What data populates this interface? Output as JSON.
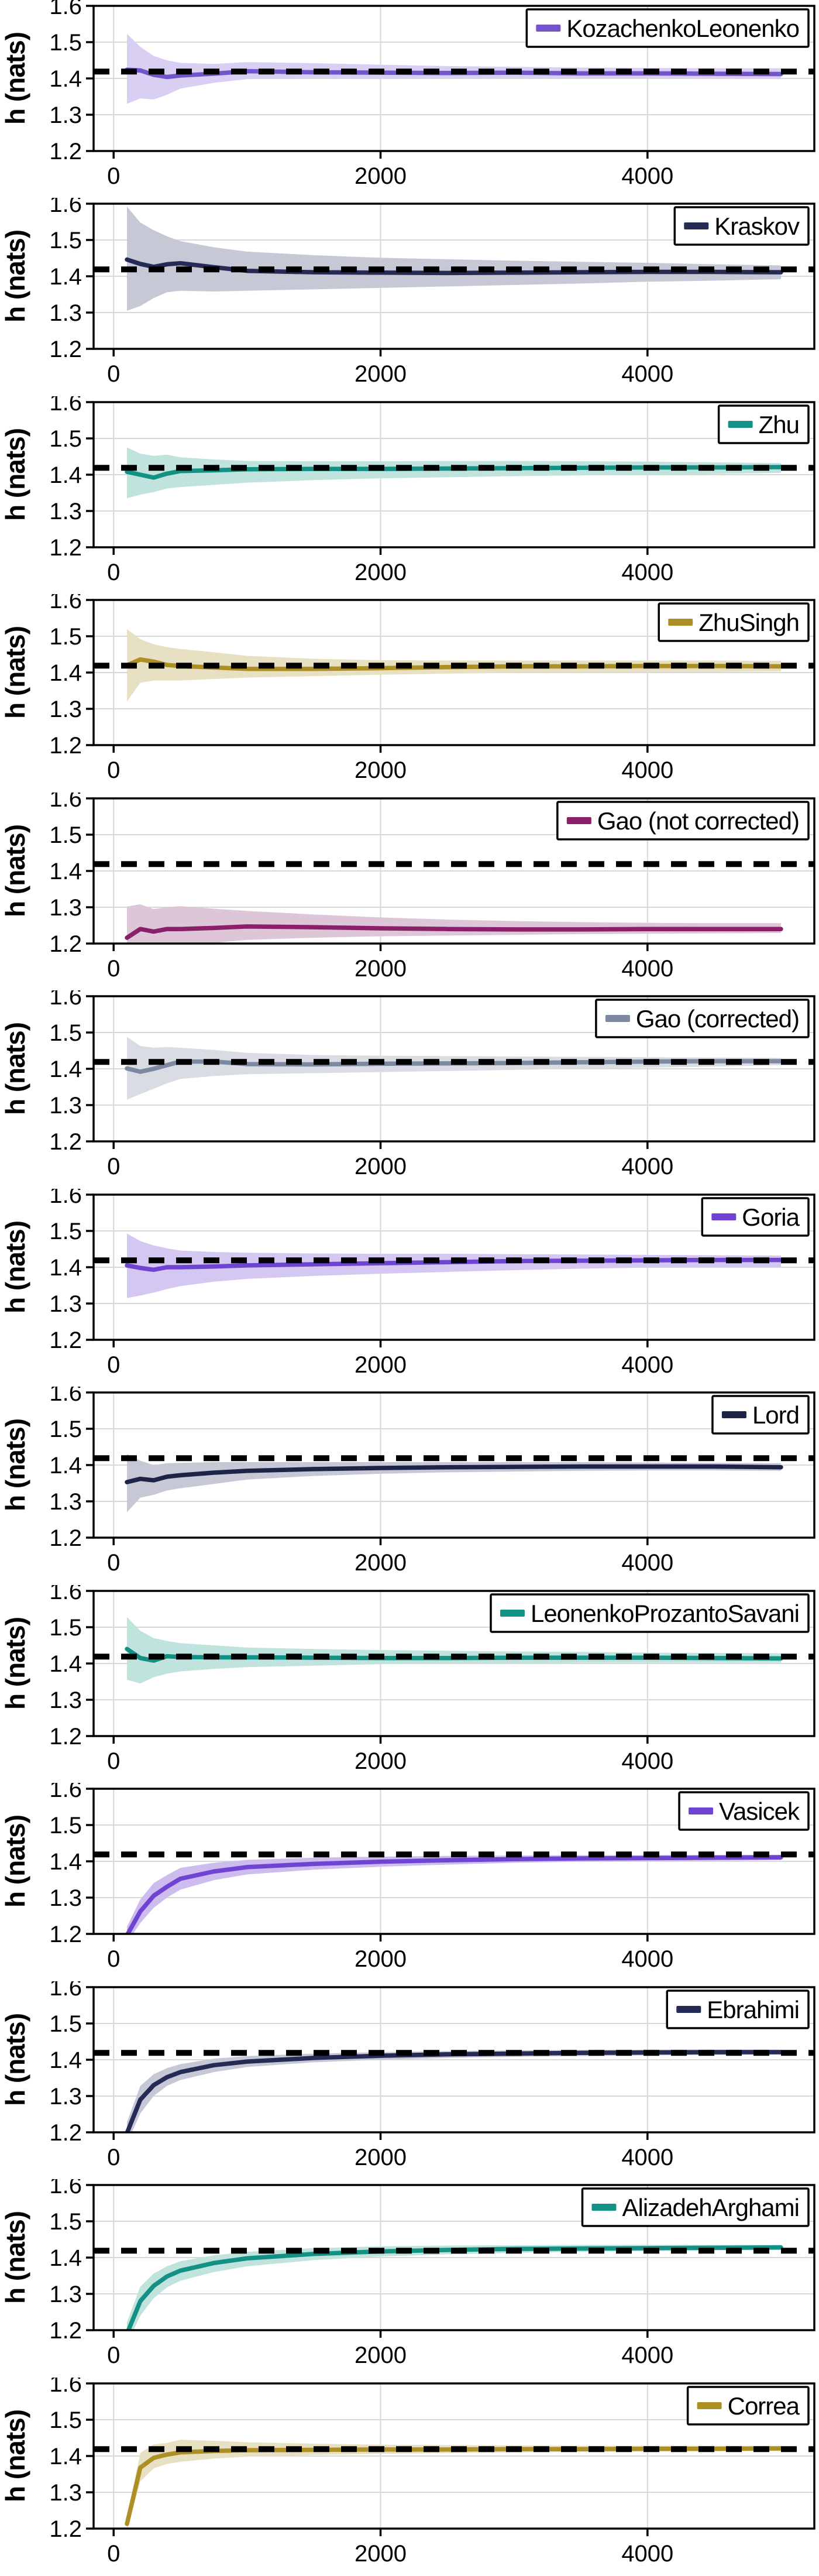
{
  "figure": {
    "ylabel": "h (nats)",
    "yticks": [
      "1.2",
      "1.3",
      "1.4",
      "1.5",
      "1.6"
    ],
    "ytick_values": [
      1.2,
      1.3,
      1.4,
      1.5,
      1.6
    ],
    "xticks": [
      "0",
      "2000",
      "4000"
    ],
    "xtick_values": [
      0,
      2000,
      4000
    ],
    "ylim": [
      1.2,
      1.6
    ],
    "xlim": [
      -150,
      5250
    ],
    "grid": true,
    "grid_color": "#D8D8D8",
    "frame_color": "#000000",
    "reference_value": 1.4189,
    "reference_color": "#000000",
    "reference_style": "dashed",
    "legend_position": "top-right"
  },
  "chart_data": [
    {
      "type": "line",
      "name": "KozachenkoLeonenko",
      "legend": "KozachenkoLeonenko",
      "line_color": "#7355CB",
      "band_color": "#D9CFF2",
      "x": [
        100,
        200,
        300,
        400,
        500,
        750,
        1000,
        1500,
        2000,
        2500,
        3000,
        3500,
        4000,
        4500,
        5000
      ],
      "mean": [
        1.424,
        1.422,
        1.41,
        1.404,
        1.408,
        1.413,
        1.42,
        1.417,
        1.416,
        1.415,
        1.416,
        1.414,
        1.414,
        1.413,
        1.412
      ],
      "lo": [
        1.33,
        1.345,
        1.342,
        1.355,
        1.372,
        1.388,
        1.398,
        1.4,
        1.399,
        1.4,
        1.401,
        1.4,
        1.4,
        1.399,
        1.398
      ],
      "hi": [
        1.523,
        1.487,
        1.462,
        1.45,
        1.443,
        1.44,
        1.445,
        1.442,
        1.438,
        1.434,
        1.432,
        1.43,
        1.429,
        1.428,
        1.428
      ]
    },
    {
      "type": "line",
      "name": "Kraskov",
      "legend": "Kraskov",
      "line_color": "#252B54",
      "band_color": "#C6C8D6",
      "x": [
        100,
        200,
        300,
        400,
        500,
        750,
        1000,
        1500,
        2000,
        2500,
        3000,
        3500,
        4000,
        4500,
        5000
      ],
      "mean": [
        1.446,
        1.434,
        1.426,
        1.433,
        1.436,
        1.425,
        1.415,
        1.411,
        1.41,
        1.409,
        1.41,
        1.411,
        1.412,
        1.412,
        1.411
      ],
      "lo": [
        1.305,
        1.318,
        1.34,
        1.356,
        1.36,
        1.358,
        1.36,
        1.364,
        1.368,
        1.372,
        1.376,
        1.38,
        1.385,
        1.388,
        1.392
      ],
      "hi": [
        1.592,
        1.548,
        1.527,
        1.51,
        1.497,
        1.48,
        1.468,
        1.458,
        1.451,
        1.447,
        1.443,
        1.44,
        1.437,
        1.433,
        1.43
      ]
    },
    {
      "type": "line",
      "name": "Zhu",
      "legend": "Zhu",
      "line_color": "#149185",
      "band_color": "#C0E3DE",
      "x": [
        100,
        200,
        300,
        400,
        500,
        750,
        1000,
        1500,
        2000,
        2500,
        3000,
        3500,
        4000,
        4500,
        5000
      ],
      "mean": [
        1.408,
        1.4,
        1.392,
        1.403,
        1.41,
        1.412,
        1.415,
        1.416,
        1.416,
        1.417,
        1.418,
        1.419,
        1.42,
        1.42,
        1.421
      ],
      "lo": [
        1.335,
        1.345,
        1.352,
        1.362,
        1.366,
        1.372,
        1.378,
        1.385,
        1.39,
        1.393,
        1.396,
        1.398,
        1.4,
        1.402,
        1.405
      ],
      "hi": [
        1.475,
        1.458,
        1.452,
        1.455,
        1.448,
        1.442,
        1.438,
        1.437,
        1.437,
        1.438,
        1.438,
        1.437,
        1.436,
        1.434,
        1.432
      ]
    },
    {
      "type": "line",
      "name": "ZhuSingh",
      "legend": "ZhuSingh",
      "line_color": "#AD9025",
      "band_color": "#E7E0C2",
      "x": [
        100,
        200,
        300,
        400,
        500,
        750,
        1000,
        1500,
        2000,
        2500,
        3000,
        3500,
        4000,
        4500,
        5000
      ],
      "mean": [
        1.42,
        1.436,
        1.43,
        1.421,
        1.418,
        1.414,
        1.41,
        1.41,
        1.412,
        1.415,
        1.417,
        1.417,
        1.418,
        1.418,
        1.417
      ],
      "lo": [
        1.32,
        1.372,
        1.378,
        1.378,
        1.378,
        1.382,
        1.386,
        1.39,
        1.394,
        1.397,
        1.399,
        1.4,
        1.401,
        1.402,
        1.403
      ],
      "hi": [
        1.52,
        1.492,
        1.478,
        1.47,
        1.465,
        1.456,
        1.446,
        1.438,
        1.434,
        1.433,
        1.433,
        1.433,
        1.433,
        1.433,
        1.432
      ]
    },
    {
      "type": "line",
      "name": "Gao (not corrected)",
      "legend": "Gao (not corrected)",
      "line_color": "#8A2069",
      "band_color": "#DCC6D7",
      "x": [
        100,
        200,
        300,
        400,
        500,
        750,
        1000,
        1500,
        2000,
        2500,
        3000,
        3500,
        4000,
        4500,
        5000
      ],
      "mean": [
        1.216,
        1.24,
        1.233,
        1.24,
        1.24,
        1.243,
        1.247,
        1.245,
        1.242,
        1.24,
        1.239,
        1.239,
        1.24,
        1.24,
        1.24
      ],
      "lo": [
        1.198,
        1.2,
        1.198,
        1.2,
        1.2,
        1.202,
        1.21,
        1.216,
        1.22,
        1.222,
        1.224,
        1.226,
        1.227,
        1.228,
        1.229
      ],
      "hi": [
        1.302,
        1.308,
        1.295,
        1.3,
        1.303,
        1.296,
        1.29,
        1.28,
        1.272,
        1.266,
        1.262,
        1.259,
        1.257,
        1.256,
        1.256
      ]
    },
    {
      "type": "line",
      "name": "Gao (corrected)",
      "legend": "Gao (corrected)",
      "line_color": "#7D89A0",
      "band_color": "#DADCE3",
      "x": [
        100,
        200,
        300,
        400,
        500,
        750,
        1000,
        1500,
        2000,
        2500,
        3000,
        3500,
        4000,
        4500,
        5000
      ],
      "mean": [
        1.401,
        1.392,
        1.4,
        1.41,
        1.42,
        1.42,
        1.413,
        1.412,
        1.414,
        1.415,
        1.416,
        1.418,
        1.42,
        1.421,
        1.421
      ],
      "lo": [
        1.315,
        1.33,
        1.345,
        1.36,
        1.372,
        1.38,
        1.385,
        1.388,
        1.391,
        1.394,
        1.397,
        1.4,
        1.403,
        1.406,
        1.41
      ],
      "hi": [
        1.488,
        1.463,
        1.458,
        1.46,
        1.458,
        1.452,
        1.444,
        1.438,
        1.436,
        1.435,
        1.434,
        1.433,
        1.432,
        1.431,
        1.43
      ]
    },
    {
      "type": "line",
      "name": "Goria",
      "legend": "Goria",
      "line_color": "#6F44D2",
      "band_color": "#D4C7F1",
      "x": [
        100,
        200,
        300,
        400,
        500,
        750,
        1000,
        1500,
        2000,
        2500,
        3000,
        3500,
        4000,
        4500,
        5000
      ],
      "mean": [
        1.405,
        1.398,
        1.393,
        1.4,
        1.4,
        1.402,
        1.405,
        1.408,
        1.411,
        1.414,
        1.417,
        1.418,
        1.419,
        1.42,
        1.42
      ],
      "lo": [
        1.315,
        1.322,
        1.33,
        1.34,
        1.348,
        1.36,
        1.368,
        1.376,
        1.382,
        1.387,
        1.392,
        1.396,
        1.399,
        1.4,
        1.4
      ],
      "hi": [
        1.493,
        1.472,
        1.46,
        1.452,
        1.446,
        1.442,
        1.44,
        1.438,
        1.437,
        1.437,
        1.436,
        1.435,
        1.434,
        1.433,
        1.432
      ]
    },
    {
      "type": "line",
      "name": "Lord",
      "legend": "Lord",
      "line_color": "#1E2348",
      "band_color": "#C6C8D6",
      "x": [
        100,
        200,
        300,
        400,
        500,
        750,
        1000,
        1500,
        2000,
        2500,
        3000,
        3500,
        4000,
        4500,
        5000
      ],
      "mean": [
        1.353,
        1.362,
        1.358,
        1.368,
        1.372,
        1.379,
        1.384,
        1.389,
        1.392,
        1.394,
        1.395,
        1.396,
        1.396,
        1.396,
        1.394
      ],
      "lo": [
        1.27,
        1.31,
        1.318,
        1.33,
        1.336,
        1.348,
        1.36,
        1.37,
        1.376,
        1.38,
        1.382,
        1.384,
        1.385,
        1.385,
        1.384
      ],
      "hi": [
        1.43,
        1.412,
        1.4,
        1.405,
        1.406,
        1.408,
        1.408,
        1.408,
        1.408,
        1.408,
        1.408,
        1.408,
        1.407,
        1.406,
        1.405
      ]
    },
    {
      "type": "line",
      "name": "LeonenkoProzantoSavani",
      "legend": "LeonenkoProzantoSavani",
      "line_color": "#149185",
      "band_color": "#C0E3DE",
      "x": [
        100,
        200,
        300,
        400,
        500,
        750,
        1000,
        1500,
        2000,
        2500,
        3000,
        3500,
        4000,
        4500,
        5000
      ],
      "mean": [
        1.44,
        1.415,
        1.408,
        1.42,
        1.418,
        1.417,
        1.417,
        1.416,
        1.415,
        1.415,
        1.416,
        1.416,
        1.416,
        1.415,
        1.414
      ],
      "lo": [
        1.355,
        1.345,
        1.362,
        1.372,
        1.378,
        1.385,
        1.39,
        1.394,
        1.398,
        1.4,
        1.401,
        1.402,
        1.402,
        1.402,
        1.402
      ],
      "hi": [
        1.528,
        1.49,
        1.47,
        1.462,
        1.456,
        1.45,
        1.444,
        1.44,
        1.437,
        1.435,
        1.433,
        1.432,
        1.43,
        1.429,
        1.428
      ]
    },
    {
      "type": "line",
      "name": "Vasicek",
      "legend": "Vasicek",
      "line_color": "#6F44D2",
      "band_color": "#CDBCEE",
      "x": [
        100,
        200,
        300,
        400,
        500,
        750,
        1000,
        1500,
        2000,
        2500,
        3000,
        3500,
        4000,
        4500,
        5000
      ],
      "mean": [
        1.196,
        1.262,
        1.305,
        1.33,
        1.352,
        1.372,
        1.384,
        1.393,
        1.399,
        1.403,
        1.406,
        1.408,
        1.409,
        1.41,
        1.411
      ],
      "lo": [
        1.175,
        1.23,
        1.272,
        1.3,
        1.322,
        1.348,
        1.364,
        1.377,
        1.385,
        1.391,
        1.396,
        1.399,
        1.401,
        1.402,
        1.403
      ],
      "hi": [
        1.22,
        1.295,
        1.34,
        1.362,
        1.382,
        1.396,
        1.404,
        1.41,
        1.413,
        1.415,
        1.416,
        1.417,
        1.417,
        1.418,
        1.418
      ]
    },
    {
      "type": "line",
      "name": "Ebrahimi",
      "legend": "Ebrahimi",
      "line_color": "#252B54",
      "band_color": "#C6C8D6",
      "x": [
        100,
        200,
        300,
        400,
        500,
        750,
        1000,
        1500,
        2000,
        2500,
        3000,
        3500,
        4000,
        4500,
        5000
      ],
      "mean": [
        1.198,
        1.29,
        1.33,
        1.352,
        1.366,
        1.385,
        1.395,
        1.405,
        1.411,
        1.415,
        1.417,
        1.419,
        1.42,
        1.421,
        1.421
      ],
      "lo": [
        1.17,
        1.252,
        1.3,
        1.328,
        1.344,
        1.366,
        1.38,
        1.393,
        1.4,
        1.405,
        1.408,
        1.41,
        1.412,
        1.413,
        1.414
      ],
      "hi": [
        1.228,
        1.328,
        1.36,
        1.377,
        1.388,
        1.403,
        1.41,
        1.417,
        1.421,
        1.424,
        1.426,
        1.427,
        1.428,
        1.428,
        1.428
      ]
    },
    {
      "type": "line",
      "name": "AlizadehArghami",
      "legend": "AlizadehArghami",
      "line_color": "#149185",
      "band_color": "#C0E3DE",
      "x": [
        100,
        200,
        300,
        400,
        500,
        750,
        1000,
        1500,
        2000,
        2500,
        3000,
        3500,
        4000,
        4500,
        5000
      ],
      "mean": [
        1.19,
        1.28,
        1.322,
        1.348,
        1.364,
        1.385,
        1.398,
        1.41,
        1.417,
        1.421,
        1.424,
        1.425,
        1.426,
        1.427,
        1.428
      ],
      "lo": [
        1.162,
        1.24,
        1.288,
        1.318,
        1.336,
        1.36,
        1.376,
        1.393,
        1.403,
        1.409,
        1.413,
        1.416,
        1.418,
        1.42,
        1.421
      ],
      "hi": [
        1.222,
        1.32,
        1.356,
        1.376,
        1.39,
        1.406,
        1.416,
        1.426,
        1.431,
        1.433,
        1.434,
        1.435,
        1.435,
        1.435,
        1.435
      ]
    },
    {
      "type": "line",
      "name": "Correa",
      "legend": "Correa",
      "line_color": "#AD9025",
      "band_color": "#E7E0C2",
      "x": [
        100,
        200,
        300,
        400,
        500,
        750,
        1000,
        1500,
        2000,
        2500,
        3000,
        3500,
        4000,
        4500,
        5000
      ],
      "mean": [
        1.213,
        1.368,
        1.395,
        1.404,
        1.41,
        1.414,
        1.416,
        1.417,
        1.418,
        1.418,
        1.419,
        1.419,
        1.42,
        1.42,
        1.421
      ],
      "lo": [
        1.196,
        1.33,
        1.366,
        1.378,
        1.384,
        1.393,
        1.398,
        1.403,
        1.406,
        1.408,
        1.41,
        1.411,
        1.412,
        1.413,
        1.414
      ],
      "hi": [
        1.232,
        1.408,
        1.432,
        1.436,
        1.445,
        1.442,
        1.438,
        1.434,
        1.431,
        1.43,
        1.429,
        1.428,
        1.428,
        1.428,
        1.428
      ]
    }
  ]
}
